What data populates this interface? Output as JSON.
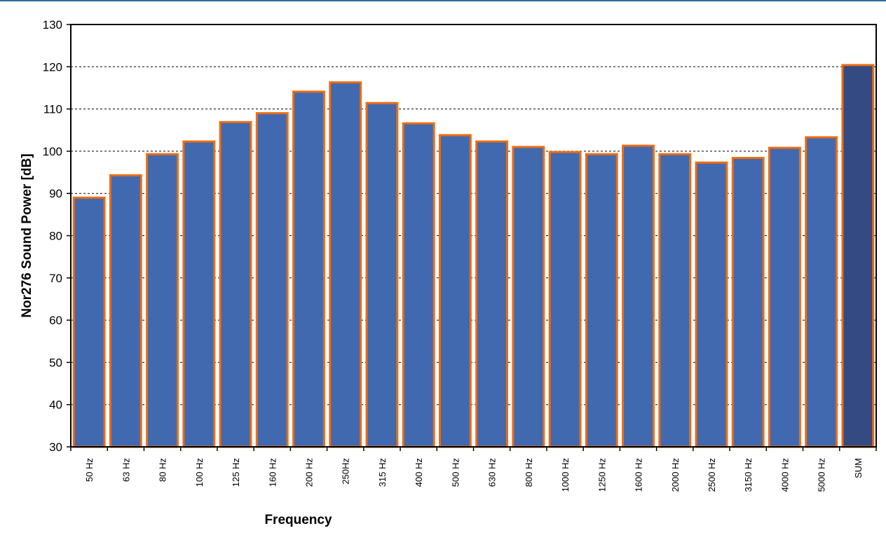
{
  "chart_data": {
    "type": "bar",
    "title": "",
    "xlabel": "Frequency",
    "ylabel": "Nor276 Sound Power [dB]",
    "ylim": [
      30,
      130
    ],
    "yticks": [
      30,
      40,
      50,
      60,
      70,
      80,
      90,
      100,
      110,
      120,
      130
    ],
    "grid": "horizontal-dashed",
    "legend": "none",
    "categories": [
      "50 Hz",
      "63 Hz",
      "80 Hz",
      "100 Hz",
      "125 Hz",
      "160 Hz",
      "200 Hz",
      "250Hz",
      "315 Hz",
      "400 Hz",
      "500 Hz",
      "630 Hz",
      "800 Hz",
      "1000 Hz",
      "1250 Hz",
      "1600 Hz",
      "2000 Hz",
      "2500 Hz",
      "3150 Hz",
      "4000 Hz",
      "5000 Hz",
      "SUM"
    ],
    "values": [
      89.0,
      94.3,
      99.3,
      102.3,
      106.9,
      109.0,
      114.1,
      116.3,
      111.4,
      106.6,
      103.8,
      102.3,
      101.0,
      99.8,
      99.3,
      101.3,
      99.3,
      97.3,
      98.4,
      100.8,
      103.3,
      120.4
    ],
    "colors": {
      "bar_fill": "#4169b0",
      "sum_fill": "#344a82",
      "bar_edge": "#ec6d13",
      "grid": "#000000"
    }
  }
}
